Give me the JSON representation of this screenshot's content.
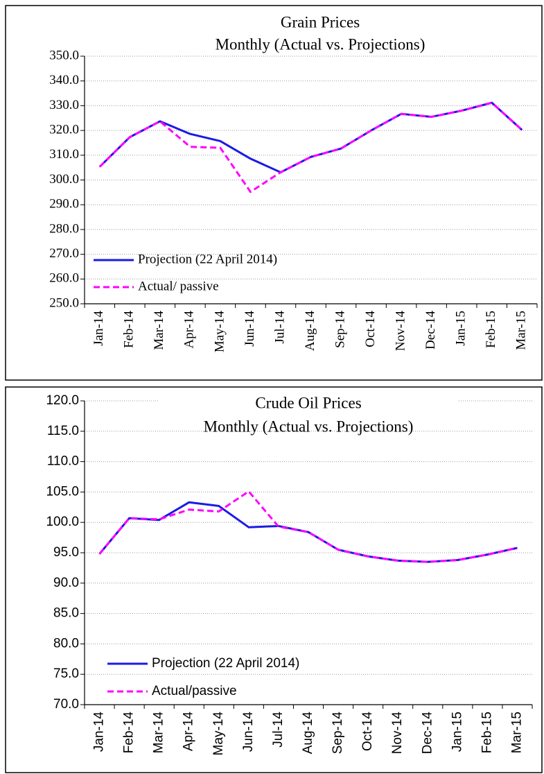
{
  "chart_data": [
    {
      "type": "line",
      "title": "Grain Prices",
      "subtitle": "Monthly (Actual vs. Projections)",
      "categories": [
        "Jan-14",
        "Feb-14",
        "Mar-14",
        "Apr-14",
        "May-14",
        "Jun-14",
        "Jul-14",
        "Aug-14",
        "Sep-14",
        "Oct-14",
        "Nov-14",
        "Dec-14",
        "Jan-15",
        "Feb-15",
        "Mar-15"
      ],
      "series": [
        {
          "name": "Projection (22 April 2014)",
          "color": "#1a1ae6",
          "style": "solid",
          "values": [
            305.3,
            317.3,
            323.7,
            318.6,
            315.7,
            308.6,
            303.1,
            309.3,
            312.7,
            320.0,
            326.7,
            325.5,
            328.0,
            331.2,
            320.2
          ]
        },
        {
          "name": "Actual/ passive",
          "color": "#ff00ff",
          "style": "dashed",
          "values": [
            305.3,
            317.3,
            323.7,
            313.4,
            313.0,
            295.2,
            303.1,
            309.3,
            312.7,
            320.0,
            326.7,
            325.5,
            328.0,
            331.2,
            320.2
          ]
        }
      ],
      "ylim": [
        250,
        350
      ],
      "yticks": [
        {
          "value": 250,
          "label": "250.0"
        },
        {
          "value": 260,
          "label": "260.0"
        },
        {
          "value": 270,
          "label": "270.0"
        },
        {
          "value": 280,
          "label": "280.0"
        },
        {
          "value": 290,
          "label": "290.0"
        },
        {
          "value": 300,
          "label": "300.0"
        },
        {
          "value": 310,
          "label": "310.0"
        },
        {
          "value": 320,
          "label": "320.0"
        },
        {
          "value": 330,
          "label": "330.0"
        },
        {
          "value": 340,
          "label": "340.0"
        },
        {
          "value": 350,
          "label": "350.0"
        }
      ],
      "grid": true,
      "legend": "bottom-left"
    },
    {
      "type": "line",
      "title": "Crude Oil Prices",
      "subtitle": "Monthly (Actual vs. Projections)",
      "categories": [
        "Jan-14",
        "Feb-14",
        "Mar-14",
        "Apr-14",
        "May-14",
        "Jun-14",
        "Jul-14",
        "Aug-14",
        "Sep-14",
        "Oct-14",
        "Nov-14",
        "Dec-14",
        "Jan-15",
        "Feb-15",
        "Mar-15"
      ],
      "series": [
        {
          "name": "Projection (22 April 2014)",
          "color": "#1a1ae6",
          "style": "solid",
          "values": [
            94.8,
            100.7,
            100.4,
            103.3,
            102.7,
            99.2,
            99.4,
            98.4,
            95.5,
            94.4,
            93.7,
            93.5,
            93.8,
            94.7,
            95.8
          ]
        },
        {
          "name": "Actual/passive",
          "color": "#ff00ff",
          "style": "dashed",
          "values": [
            94.8,
            100.7,
            100.5,
            102.1,
            101.8,
            105.1,
            99.3,
            98.4,
            95.5,
            94.4,
            93.7,
            93.5,
            93.8,
            94.7,
            95.8
          ]
        }
      ],
      "ylim": [
        70,
        120
      ],
      "yticks": [
        {
          "value": 70,
          "label": "70.0"
        },
        {
          "value": 75,
          "label": "75.0"
        },
        {
          "value": 80,
          "label": "80.0"
        },
        {
          "value": 85,
          "label": "85.0"
        },
        {
          "value": 90,
          "label": "90.0"
        },
        {
          "value": 95,
          "label": "95.0"
        },
        {
          "value": 100,
          "label": "100.0"
        },
        {
          "value": 105,
          "label": "105.0"
        },
        {
          "value": 110,
          "label": "110.0"
        },
        {
          "value": 115,
          "label": "115.0"
        },
        {
          "value": 120,
          "label": "120.0"
        }
      ],
      "grid": true,
      "legend": "bottom-left"
    }
  ]
}
